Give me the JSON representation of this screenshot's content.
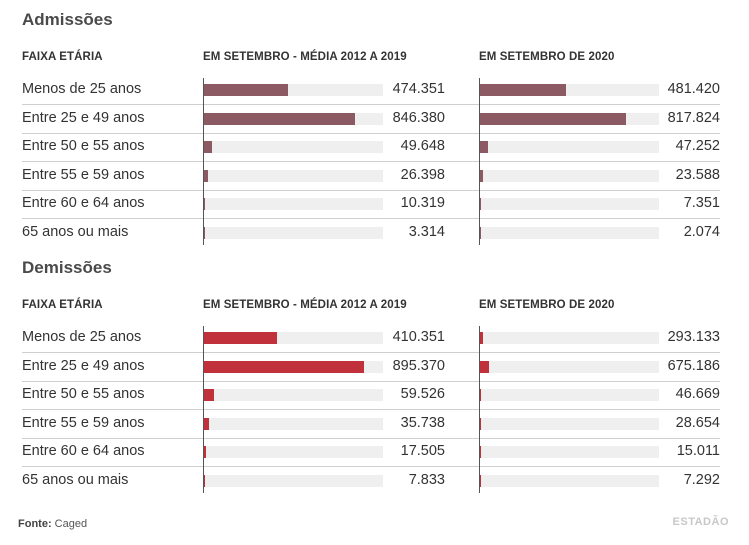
{
  "chart_data": [
    {
      "type": "bar",
      "title": "Admissões",
      "category_header": "FAIXA ETÁRIA",
      "categories": [
        "Menos de 25 anos",
        "Entre 25 e 49 anos",
        "Entre 50 e 55 anos",
        "Entre 55 e 59 anos",
        "Entre 60 e 64 anos",
        "65 anos ou mais"
      ],
      "series": [
        {
          "name": "EM SETEMBRO - MÉDIA 2012 A 2019",
          "values": [
            474351,
            846380,
            49648,
            26398,
            10319,
            3314
          ],
          "labels": [
            "474.351",
            "846.380",
            "49.648",
            "26.398",
            "10.319",
            "3.314"
          ]
        },
        {
          "name": "EM SETEMBRO DE 2020",
          "values": [
            481420,
            817824,
            47252,
            23588,
            7351,
            2074
          ],
          "labels": [
            "481.420",
            "817.824",
            "47.252",
            "23.588",
            "7.351",
            "2.074"
          ]
        }
      ],
      "xlim": [
        0,
        1000000
      ],
      "color": "#8b5a62"
    },
    {
      "type": "bar",
      "title": "Demissões",
      "category_header": "FAIXA ETÁRIA",
      "categories": [
        "Menos de 25 anos",
        "Entre 25 e 49 anos",
        "Entre 50 e 55 anos",
        "Entre 55 e 59 anos",
        "Entre 60 e 64 anos",
        "65 anos ou mais"
      ],
      "series": [
        {
          "name": "EM SETEMBRO - MÉDIA 2012 A 2019",
          "values": [
            410351,
            895370,
            59526,
            35738,
            17505,
            7833
          ],
          "labels": [
            "410.351",
            "895.370",
            "59.526",
            "35.738",
            "17.505",
            "7.833"
          ]
        },
        {
          "name": "EM SETEMBRO DE 2020",
          "values": [
            293133,
            675186,
            46669,
            28654,
            15011,
            7292
          ],
          "labels": [
            "293.133",
            "675.186",
            "46.669",
            "28.654",
            "15.011",
            "7.292"
          ]
        }
      ],
      "xlim": [
        0,
        1000000
      ],
      "series_scale": [
        1,
        0.0195
      ],
      "color": "#c0313c"
    }
  ],
  "footer": {
    "source_label": "Fonte:",
    "source_text": "Caged",
    "logo": "ESTADÃO"
  }
}
